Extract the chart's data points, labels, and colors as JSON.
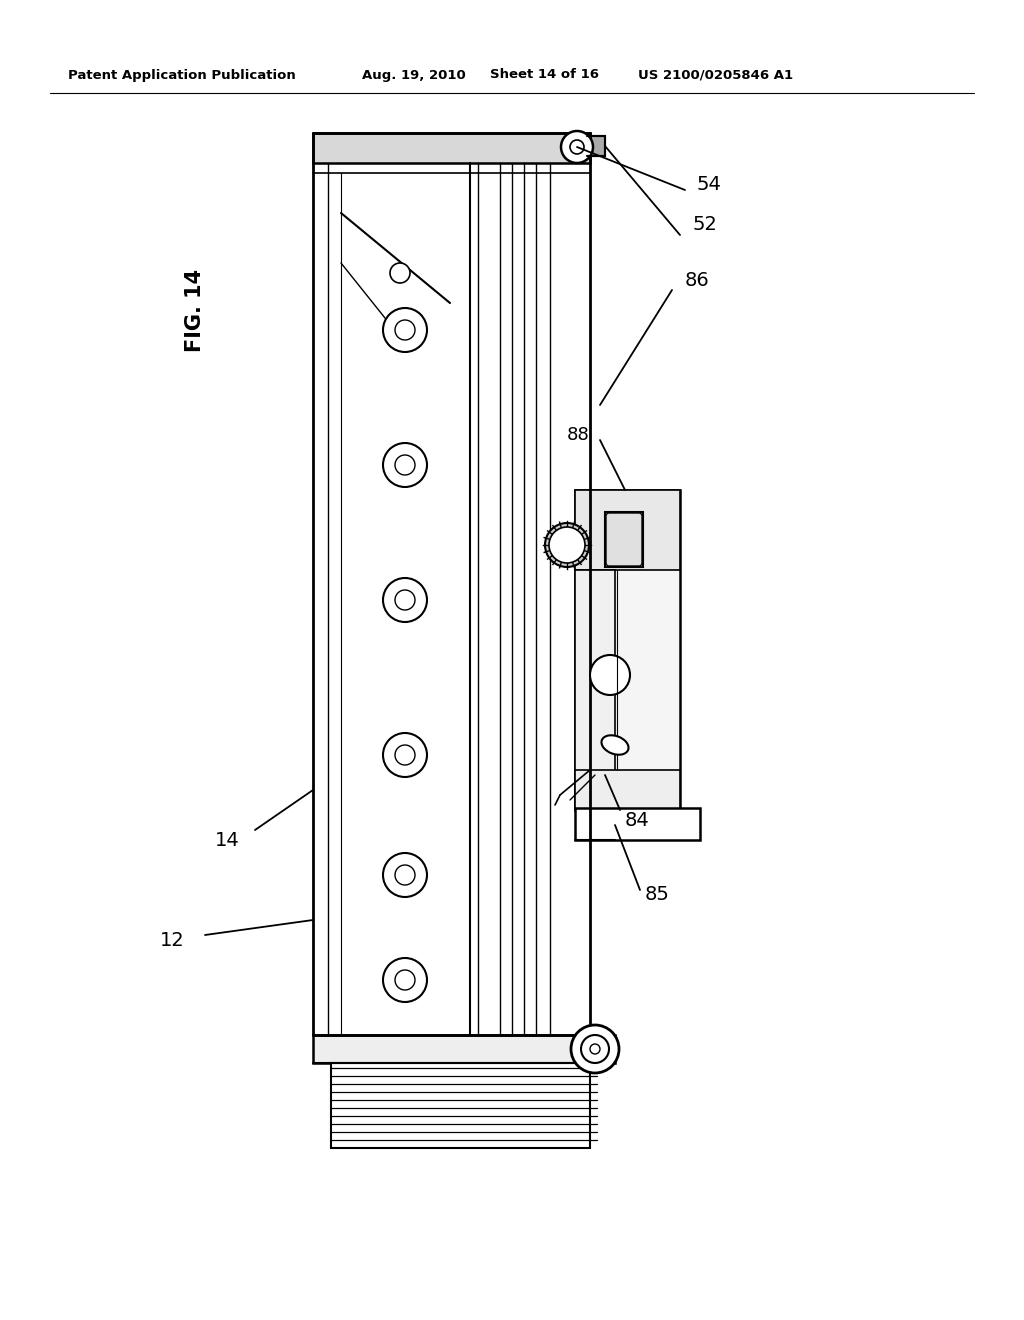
{
  "title_header": "Patent Application Publication",
  "date_header": "Aug. 19, 2010",
  "sheet_header": "Sheet 14 of 16",
  "patent_header": "US 2100/0205846 A1",
  "fig_label": "FIG. 14",
  "bg_color": "#ffffff"
}
